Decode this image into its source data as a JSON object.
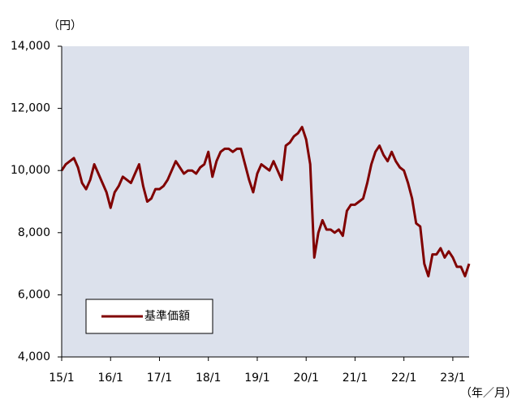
{
  "chart_data": {
    "type": "line",
    "y_unit_label": "（円）",
    "x_unit_label": "（年／月）",
    "categories": [
      "15/1",
      null,
      null,
      null,
      null,
      null,
      null,
      null,
      null,
      null,
      null,
      null,
      "16/1",
      null,
      null,
      null,
      null,
      null,
      null,
      null,
      null,
      null,
      null,
      null,
      "17/1",
      null,
      null,
      null,
      null,
      null,
      null,
      null,
      null,
      null,
      null,
      null,
      "18/1",
      null,
      null,
      null,
      null,
      null,
      null,
      null,
      null,
      null,
      null,
      null,
      "19/1",
      null,
      null,
      null,
      null,
      null,
      null,
      null,
      null,
      null,
      null,
      null,
      "20/1",
      null,
      null,
      null,
      null,
      null,
      null,
      null,
      null,
      null,
      null,
      null,
      "21/1",
      null,
      null,
      null,
      null,
      null,
      null,
      null,
      null,
      null,
      null,
      null,
      "22/1",
      null,
      null,
      null,
      null,
      null,
      null,
      null,
      null,
      null,
      null,
      null,
      "23/1",
      null,
      null,
      null,
      null
    ],
    "series": [
      {
        "name": "基準価額",
        "color": "#800000",
        "values": [
          10000,
          10200,
          10300,
          10400,
          10100,
          9600,
          9400,
          9700,
          10200,
          9900,
          9600,
          9300,
          8800,
          9300,
          9500,
          9800,
          9700,
          9600,
          9900,
          10200,
          9500,
          9000,
          9100,
          9400,
          9400,
          9500,
          9700,
          10000,
          10300,
          10100,
          9900,
          10000,
          10000,
          9900,
          10100,
          10200,
          10600,
          9800,
          10300,
          10600,
          10700,
          10700,
          10600,
          10700,
          10700,
          10200,
          9700,
          9300,
          9900,
          10200,
          10100,
          10000,
          10300,
          10000,
          9700,
          10800,
          10900,
          11100,
          11200,
          11400,
          11000,
          10200,
          7200,
          8000,
          8400,
          8100,
          8100,
          8000,
          8100,
          7900,
          8700,
          8900,
          8900,
          9000,
          9100,
          9600,
          10200,
          10600,
          10800,
          10500,
          10300,
          10600,
          10300,
          10100,
          10000,
          9600,
          9100,
          8300,
          8200,
          7000,
          6600,
          7300,
          7300,
          7500,
          7200,
          7400,
          7200,
          6900,
          6900,
          6600,
          7000
        ]
      }
    ],
    "ylim": [
      4000,
      14000
    ],
    "yticks": [
      {
        "value": 4000,
        "label": "4,000"
      },
      {
        "value": 6000,
        "label": "6,000"
      },
      {
        "value": 8000,
        "label": "8,000"
      },
      {
        "value": 10000,
        "label": "10,000"
      },
      {
        "value": 12000,
        "label": "12,000"
      },
      {
        "value": 14000,
        "label": "14,000"
      }
    ],
    "grid": false,
    "background": "#dce1ec",
    "legend": "lower left"
  }
}
